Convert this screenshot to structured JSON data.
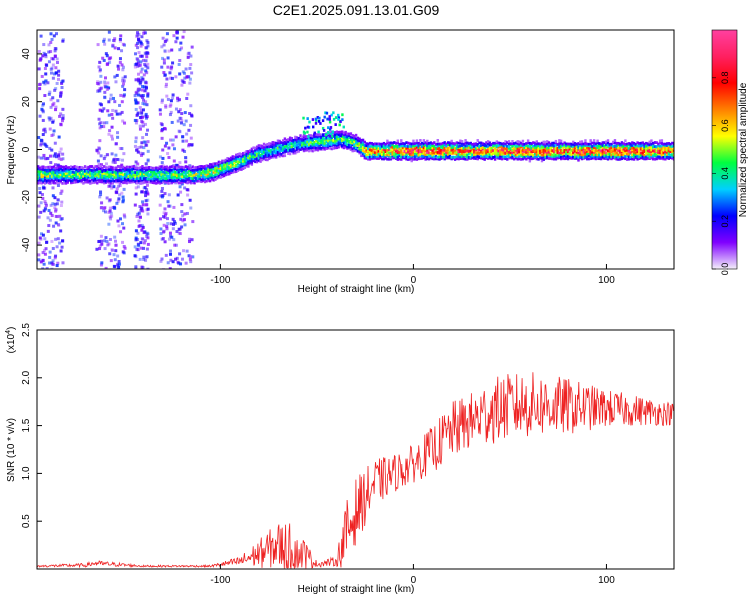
{
  "title": "C2E1.2025.091.13.01.G09",
  "chart_data": [
    {
      "type": "heatmap",
      "title": "C2E1.2025.091.13.01.G09",
      "xlabel": "Height of straight line (km)",
      "ylabel": "Frequency (Hz)",
      "xlim": [
        -195,
        135
      ],
      "ylim": [
        -50,
        50
      ],
      "x_ticks": [
        -100,
        0,
        100
      ],
      "y_ticks": [
        40,
        20,
        0,
        -20,
        -40
      ],
      "x_tick_labels": [
        "-100",
        "0",
        "100"
      ],
      "y_tick_labels": [
        "40",
        "20",
        "0",
        "-20",
        "-40"
      ],
      "grid": false,
      "colorbar": {
        "label": "Normalized spectral amplitude",
        "range": [
          0,
          1
        ],
        "ticks": [
          0.0,
          0.2,
          0.4,
          0.6,
          0.8
        ],
        "tick_labels": [
          "0.0",
          "0.2",
          "0.4",
          "0.6",
          "0.8"
        ],
        "colors": [
          "#f4f0fa",
          "#8000ff",
          "#0000ff",
          "#00d0ff",
          "#00ff40",
          "#ffff00",
          "#ff8000",
          "#ff0000",
          "#ff2060",
          "#ff40a0"
        ]
      },
      "ridge": {
        "x": [
          -195,
          -150,
          -115,
          -105,
          -95,
          -80,
          -60,
          -45,
          -38,
          -30,
          -25,
          -10,
          0,
          20,
          40,
          60,
          80,
          100,
          120,
          135
        ],
        "frequency_hz": [
          -10,
          -10,
          -10,
          -9,
          -6,
          -1,
          3,
          4,
          5,
          3,
          0,
          0,
          0,
          0,
          0,
          0,
          0,
          0,
          0,
          0
        ],
        "peak_amplitude": [
          0.55,
          0.5,
          0.55,
          0.6,
          0.55,
          0.45,
          0.45,
          0.5,
          0.5,
          0.55,
          0.7,
          0.85,
          0.9,
          0.85,
          0.8,
          0.9,
          0.85,
          0.9,
          0.85,
          0.8
        ]
      },
      "noise_bands_x": [
        [
          -195,
          -182
        ],
        [
          -165,
          -150
        ],
        [
          -145,
          -138
        ],
        [
          -132,
          -115
        ]
      ]
    },
    {
      "type": "line",
      "xlabel": "Height of straight line (km)",
      "ylabel": "SNR (10 * v/v)",
      "y_multiplier_label": "(x10",
      "y_multiplier_exponent": "4",
      "xlim": [
        -195,
        135
      ],
      "ylim": [
        0,
        2.5
      ],
      "x_ticks": [
        -100,
        0,
        100
      ],
      "x_tick_labels": [
        "-100",
        "0",
        "100"
      ],
      "y_ticks": [
        0.5,
        1.0,
        1.5,
        2.0,
        2.5
      ],
      "y_tick_labels": [
        "0.5",
        "1.0",
        "1.5",
        "2.0",
        "2.5"
      ],
      "grid": false,
      "line_color": "#ee2222",
      "envelope": {
        "x": [
          -195,
          -170,
          -165,
          -140,
          -105,
          -90,
          -80,
          -70,
          -65,
          -58,
          -50,
          -40,
          -35,
          -30,
          -25,
          -20,
          -10,
          0,
          10,
          20,
          30,
          40,
          50,
          60,
          80,
          100,
          120,
          135
        ],
        "mean": [
          0.03,
          0.04,
          0.06,
          0.03,
          0.03,
          0.08,
          0.16,
          0.25,
          0.2,
          0.18,
          0.05,
          0.08,
          0.35,
          0.6,
          0.75,
          0.9,
          1.0,
          1.1,
          1.25,
          1.45,
          1.55,
          1.65,
          1.7,
          1.72,
          1.7,
          1.68,
          1.65,
          1.62
        ],
        "spread": [
          0.01,
          0.02,
          0.03,
          0.01,
          0.01,
          0.05,
          0.15,
          0.25,
          0.3,
          0.2,
          0.03,
          0.05,
          0.35,
          0.35,
          0.3,
          0.25,
          0.2,
          0.2,
          0.25,
          0.3,
          0.3,
          0.35,
          0.35,
          0.35,
          0.3,
          0.2,
          0.15,
          0.12
        ]
      }
    }
  ]
}
